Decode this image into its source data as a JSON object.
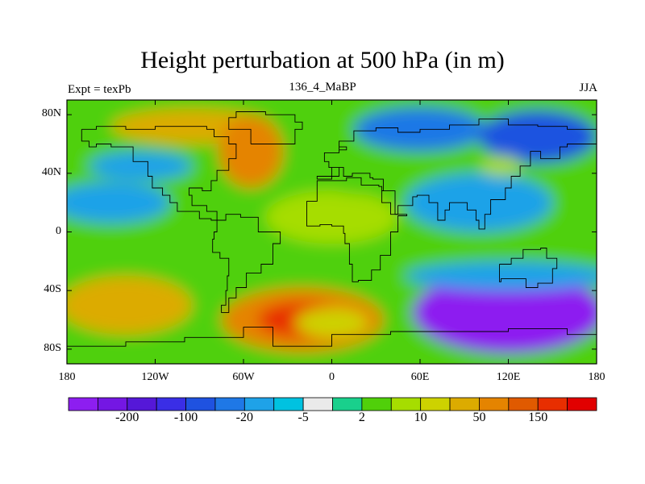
{
  "title": "Height perturbation at 500 hPa (in m)",
  "left_string": "Expt = texPb",
  "center_string": "136_4_MaBP",
  "right_string": "JJA",
  "map": {
    "projection": "cylindrical-equidistant",
    "lon_range": [
      -180,
      180
    ],
    "lat_range": [
      -90,
      90
    ],
    "y_ticks": [
      {
        "lat": 80,
        "label": "80N"
      },
      {
        "lat": 40,
        "label": "40N"
      },
      {
        "lat": 0,
        "label": "0"
      },
      {
        "lat": -40,
        "label": "40S"
      },
      {
        "lat": -80,
        "label": "80S"
      }
    ],
    "x_ticks": [
      {
        "lon": -180,
        "label": "180"
      },
      {
        "lon": -120,
        "label": "120W"
      },
      {
        "lon": -60,
        "label": "60W"
      },
      {
        "lon": 0,
        "label": "0"
      },
      {
        "lon": 60,
        "label": "60E"
      },
      {
        "lon": 120,
        "label": "120E"
      },
      {
        "lon": 180,
        "label": "180"
      }
    ]
  },
  "colorbar": {
    "colors": [
      "#8d1ef0",
      "#7417e3",
      "#5518d8",
      "#3a2ee6",
      "#1f52e0",
      "#1f78e6",
      "#1fa2e8",
      "#00c2e0",
      "#eaeaea",
      "#19d08c",
      "#50d00a",
      "#a6dd00",
      "#cdd200",
      "#dcab00",
      "#e58400",
      "#e05a00",
      "#e82e00",
      "#e10000"
    ],
    "labels": [
      {
        "after_index": 1,
        "text": "-200"
      },
      {
        "after_index": 3,
        "text": "-100"
      },
      {
        "after_index": 5,
        "text": "-20"
      },
      {
        "after_index": 7,
        "text": "-5"
      },
      {
        "after_index": 9,
        "text": "2"
      },
      {
        "after_index": 11,
        "text": "10"
      },
      {
        "after_index": 13,
        "text": "50"
      },
      {
        "after_index": 15,
        "text": "150"
      }
    ]
  },
  "field_blobs": [
    {
      "lon": -150,
      "lat": 20,
      "rx": 40,
      "ry": 14,
      "level": -0.7
    },
    {
      "lon": -130,
      "lat": 45,
      "rx": 35,
      "ry": 10,
      "level": -0.6
    },
    {
      "lon": -95,
      "lat": 72,
      "rx": 55,
      "ry": 12,
      "level": 1.0
    },
    {
      "lon": -55,
      "lat": 55,
      "rx": 22,
      "ry": 25,
      "level": 1.2
    },
    {
      "lon": -15,
      "lat": 75,
      "rx": 25,
      "ry": 10,
      "level": 0.4
    },
    {
      "lon": 0,
      "lat": 10,
      "rx": 45,
      "ry": 18,
      "level": 0.5
    },
    {
      "lon": -20,
      "lat": -20,
      "rx": 50,
      "ry": 10,
      "level": 0.3
    },
    {
      "lon": 30,
      "lat": 35,
      "rx": 40,
      "ry": 10,
      "level": 0.4
    },
    {
      "lon": 60,
      "lat": 70,
      "rx": 45,
      "ry": 15,
      "level": -0.9
    },
    {
      "lon": 140,
      "lat": 65,
      "rx": 40,
      "ry": 18,
      "level": -1.1
    },
    {
      "lon": 100,
      "lat": 20,
      "rx": 50,
      "ry": 20,
      "level": -0.6
    },
    {
      "lon": 115,
      "lat": 45,
      "rx": 14,
      "ry": 7,
      "level": 0.6
    },
    {
      "lon": -140,
      "lat": -50,
      "rx": 45,
      "ry": 20,
      "level": 1.0
    },
    {
      "lon": -20,
      "lat": -60,
      "rx": 55,
      "ry": 22,
      "level": 1.4
    },
    {
      "lon": 0,
      "lat": -62,
      "rx": 25,
      "ry": 10,
      "level": 0.8
    },
    {
      "lon": 120,
      "lat": -55,
      "rx": 65,
      "ry": 28,
      "level": -2.0
    },
    {
      "lon": 120,
      "lat": -30,
      "rx": 70,
      "ry": 10,
      "level": -0.5
    },
    {
      "lon": 175,
      "lat": 40,
      "rx": 12,
      "ry": 8,
      "level": 0.3
    }
  ],
  "coastlines": [
    [
      [
        -170,
        70
      ],
      [
        -160,
        72
      ],
      [
        -140,
        70
      ],
      [
        -120,
        72
      ],
      [
        -100,
        72
      ],
      [
        -85,
        70
      ],
      [
        -80,
        65
      ],
      [
        -70,
        60
      ],
      [
        -65,
        50
      ],
      [
        -70,
        42
      ],
      [
        -78,
        35
      ],
      [
        -82,
        28
      ],
      [
        -88,
        30
      ],
      [
        -97,
        25
      ],
      [
        -95,
        18
      ],
      [
        -85,
        14
      ],
      [
        -78,
        8
      ],
      [
        -82,
        9
      ],
      [
        -90,
        14
      ],
      [
        -105,
        20
      ],
      [
        -110,
        25
      ],
      [
        -115,
        30
      ],
      [
        -122,
        38
      ],
      [
        -125,
        48
      ],
      [
        -135,
        58
      ],
      [
        -150,
        60
      ],
      [
        -160,
        58
      ],
      [
        -165,
        62
      ],
      [
        -170,
        70
      ]
    ],
    [
      [
        -80,
        8
      ],
      [
        -72,
        12
      ],
      [
        -62,
        10
      ],
      [
        -50,
        0
      ],
      [
        -35,
        -8
      ],
      [
        -40,
        -22
      ],
      [
        -48,
        -28
      ],
      [
        -58,
        -38
      ],
      [
        -65,
        -45
      ],
      [
        -70,
        -55
      ],
      [
        -75,
        -50
      ],
      [
        -72,
        -40
      ],
      [
        -71,
        -30
      ],
      [
        -70,
        -18
      ],
      [
        -76,
        -14
      ],
      [
        -81,
        -5
      ],
      [
        -80,
        0
      ],
      [
        -78,
        8
      ]
    ],
    [
      [
        -10,
        36
      ],
      [
        0,
        38
      ],
      [
        5,
        44
      ],
      [
        -2,
        48
      ],
      [
        -5,
        54
      ],
      [
        5,
        58
      ],
      [
        10,
        56
      ],
      [
        5,
        62
      ],
      [
        15,
        69
      ],
      [
        30,
        71
      ],
      [
        45,
        68
      ],
      [
        60,
        70
      ],
      [
        80,
        73
      ],
      [
        100,
        77
      ],
      [
        120,
        73
      ],
      [
        140,
        72
      ],
      [
        160,
        70
      ],
      [
        180,
        68
      ],
      [
        180,
        60
      ],
      [
        160,
        58
      ],
      [
        155,
        50
      ],
      [
        142,
        55
      ],
      [
        135,
        45
      ],
      [
        128,
        38
      ],
      [
        122,
        30
      ],
      [
        118,
        22
      ],
      [
        108,
        20
      ],
      [
        108,
        12
      ],
      [
        104,
        2
      ],
      [
        100,
        8
      ],
      [
        98,
        15
      ],
      [
        92,
        20
      ],
      [
        80,
        15
      ],
      [
        77,
        8
      ],
      [
        72,
        20
      ],
      [
        66,
        25
      ],
      [
        58,
        24
      ],
      [
        55,
        18
      ],
      [
        45,
        12
      ],
      [
        40,
        20
      ],
      [
        34,
        28
      ],
      [
        35,
        36
      ],
      [
        28,
        37
      ],
      [
        26,
        40
      ],
      [
        14,
        38
      ],
      [
        8,
        44
      ],
      [
        0,
        38
      ],
      [
        -10,
        36
      ]
    ],
    [
      [
        -17,
        21
      ],
      [
        -10,
        35
      ],
      [
        10,
        37
      ],
      [
        20,
        32
      ],
      [
        32,
        31
      ],
      [
        34,
        28
      ],
      [
        43,
        12
      ],
      [
        51,
        11
      ],
      [
        45,
        0
      ],
      [
        40,
        -10
      ],
      [
        40,
        -16
      ],
      [
        33,
        -26
      ],
      [
        27,
        -33
      ],
      [
        18,
        -34
      ],
      [
        14,
        -22
      ],
      [
        12,
        -8
      ],
      [
        9,
        -1
      ],
      [
        8,
        4
      ],
      [
        0,
        5
      ],
      [
        -8,
        4
      ],
      [
        -17,
        14
      ],
      [
        -17,
        21
      ]
    ],
    [
      [
        114,
        -22
      ],
      [
        122,
        -18
      ],
      [
        130,
        -12
      ],
      [
        137,
        -12
      ],
      [
        142,
        -11
      ],
      [
        146,
        -18
      ],
      [
        153,
        -25
      ],
      [
        150,
        -35
      ],
      [
        140,
        -38
      ],
      [
        132,
        -32
      ],
      [
        115,
        -34
      ],
      [
        114,
        -22
      ]
    ],
    [
      [
        -55,
        60
      ],
      [
        -45,
        60
      ],
      [
        -25,
        70
      ],
      [
        -20,
        75
      ],
      [
        -25,
        80
      ],
      [
        -45,
        82
      ],
      [
        -65,
        78
      ],
      [
        -70,
        70
      ],
      [
        -55,
        60
      ]
    ],
    [
      [
        -180,
        -78
      ],
      [
        -140,
        -75
      ],
      [
        -100,
        -72
      ],
      [
        -60,
        -65
      ],
      [
        -40,
        -78
      ],
      [
        0,
        -70
      ],
      [
        40,
        -68
      ],
      [
        80,
        -68
      ],
      [
        120,
        -66
      ],
      [
        160,
        -70
      ],
      [
        180,
        -78
      ]
    ]
  ]
}
